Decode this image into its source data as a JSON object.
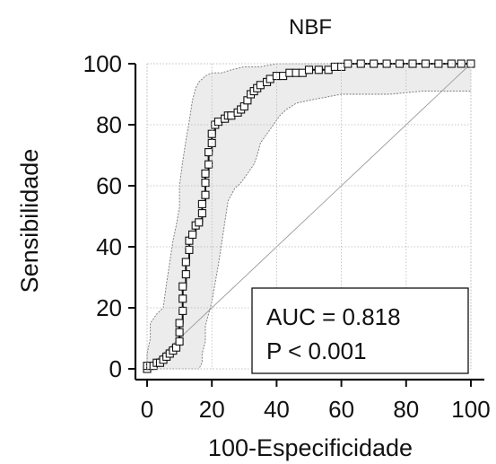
{
  "chart_data": {
    "type": "line",
    "title": "NBF",
    "xlabel": "100-Especificidade",
    "ylabel": "Sensibilidade",
    "xlim": [
      0,
      100
    ],
    "ylim": [
      0,
      100
    ],
    "grid": true,
    "x_ticks": [
      0,
      20,
      40,
      60,
      80,
      100
    ],
    "y_ticks": [
      0,
      20,
      40,
      60,
      80,
      100
    ],
    "x_tick_labels": [
      "0",
      "20",
      "40",
      "60",
      "80",
      "100"
    ],
    "y_tick_labels": [
      "0",
      "20",
      "40",
      "60",
      "80",
      "100"
    ],
    "annotation": {
      "lines": [
        "AUC = 0.818",
        "P < 0.001"
      ]
    },
    "roc_points": [
      [
        0,
        0
      ],
      [
        0,
        1
      ],
      [
        1,
        1
      ],
      [
        2,
        1
      ],
      [
        3,
        2
      ],
      [
        4,
        2
      ],
      [
        5,
        3
      ],
      [
        6,
        4
      ],
      [
        7,
        5
      ],
      [
        8,
        6
      ],
      [
        9,
        7
      ],
      [
        10,
        9
      ],
      [
        10,
        12
      ],
      [
        10,
        15
      ],
      [
        11,
        19
      ],
      [
        11,
        23
      ],
      [
        11,
        27
      ],
      [
        12,
        31
      ],
      [
        12,
        35
      ],
      [
        13,
        39
      ],
      [
        13,
        42
      ],
      [
        14,
        44
      ],
      [
        15,
        47
      ],
      [
        16,
        48
      ],
      [
        17,
        51
      ],
      [
        17,
        54
      ],
      [
        18,
        57
      ],
      [
        18,
        61
      ],
      [
        18,
        64
      ],
      [
        19,
        67
      ],
      [
        19,
        71
      ],
      [
        20,
        74
      ],
      [
        20,
        77
      ],
      [
        21,
        80
      ],
      [
        22,
        81
      ],
      [
        24,
        82
      ],
      [
        25,
        83
      ],
      [
        26,
        83
      ],
      [
        28,
        84
      ],
      [
        29,
        85
      ],
      [
        30,
        86
      ],
      [
        31,
        88
      ],
      [
        32,
        90
      ],
      [
        33,
        91
      ],
      [
        34,
        92
      ],
      [
        35,
        93
      ],
      [
        37,
        94
      ],
      [
        38,
        95
      ],
      [
        40,
        96
      ],
      [
        42,
        96
      ],
      [
        44,
        97
      ],
      [
        46,
        97
      ],
      [
        48,
        97
      ],
      [
        50,
        98
      ],
      [
        53,
        98
      ],
      [
        56,
        98
      ],
      [
        58,
        99
      ],
      [
        60,
        99
      ],
      [
        62,
        100
      ],
      [
        66,
        100
      ],
      [
        70,
        100
      ],
      [
        74,
        100
      ],
      [
        78,
        100
      ],
      [
        82,
        100
      ],
      [
        86,
        100
      ],
      [
        90,
        100
      ],
      [
        94,
        100
      ],
      [
        97,
        100
      ],
      [
        100,
        100
      ]
    ],
    "ci_upper": [
      [
        0,
        0
      ],
      [
        0,
        5
      ],
      [
        1,
        10
      ],
      [
        1,
        15
      ],
      [
        3,
        18
      ],
      [
        5,
        20
      ],
      [
        6,
        28
      ],
      [
        7,
        35
      ],
      [
        8,
        42
      ],
      [
        9,
        47
      ],
      [
        10,
        53
      ],
      [
        10,
        60
      ],
      [
        11,
        68
      ],
      [
        12,
        75
      ],
      [
        13,
        81
      ],
      [
        14,
        88
      ],
      [
        15,
        92
      ],
      [
        16,
        94
      ],
      [
        18,
        96
      ],
      [
        20,
        97
      ],
      [
        23,
        97
      ],
      [
        26,
        98
      ],
      [
        30,
        99
      ],
      [
        35,
        99
      ],
      [
        40,
        100
      ],
      [
        50,
        100
      ],
      [
        100,
        100
      ]
    ],
    "ci_lower": [
      [
        0,
        0
      ],
      [
        4,
        0
      ],
      [
        8,
        0
      ],
      [
        12,
        0
      ],
      [
        16,
        0
      ],
      [
        17,
        2
      ],
      [
        17,
        5
      ],
      [
        18,
        9
      ],
      [
        18,
        14
      ],
      [
        19,
        18
      ],
      [
        20,
        22
      ],
      [
        21,
        28
      ],
      [
        22,
        34
      ],
      [
        23,
        41
      ],
      [
        24,
        48
      ],
      [
        25,
        55
      ],
      [
        27,
        59
      ],
      [
        29,
        61
      ],
      [
        31,
        64
      ],
      [
        33,
        67
      ],
      [
        34,
        70
      ],
      [
        35,
        74
      ],
      [
        37,
        77
      ],
      [
        39,
        80
      ],
      [
        41,
        83
      ],
      [
        43,
        85
      ],
      [
        46,
        87
      ],
      [
        50,
        88
      ],
      [
        55,
        89
      ],
      [
        60,
        90
      ],
      [
        65,
        90
      ],
      [
        75,
        90
      ],
      [
        85,
        91
      ],
      [
        92,
        91
      ],
      [
        100,
        91
      ]
    ]
  }
}
